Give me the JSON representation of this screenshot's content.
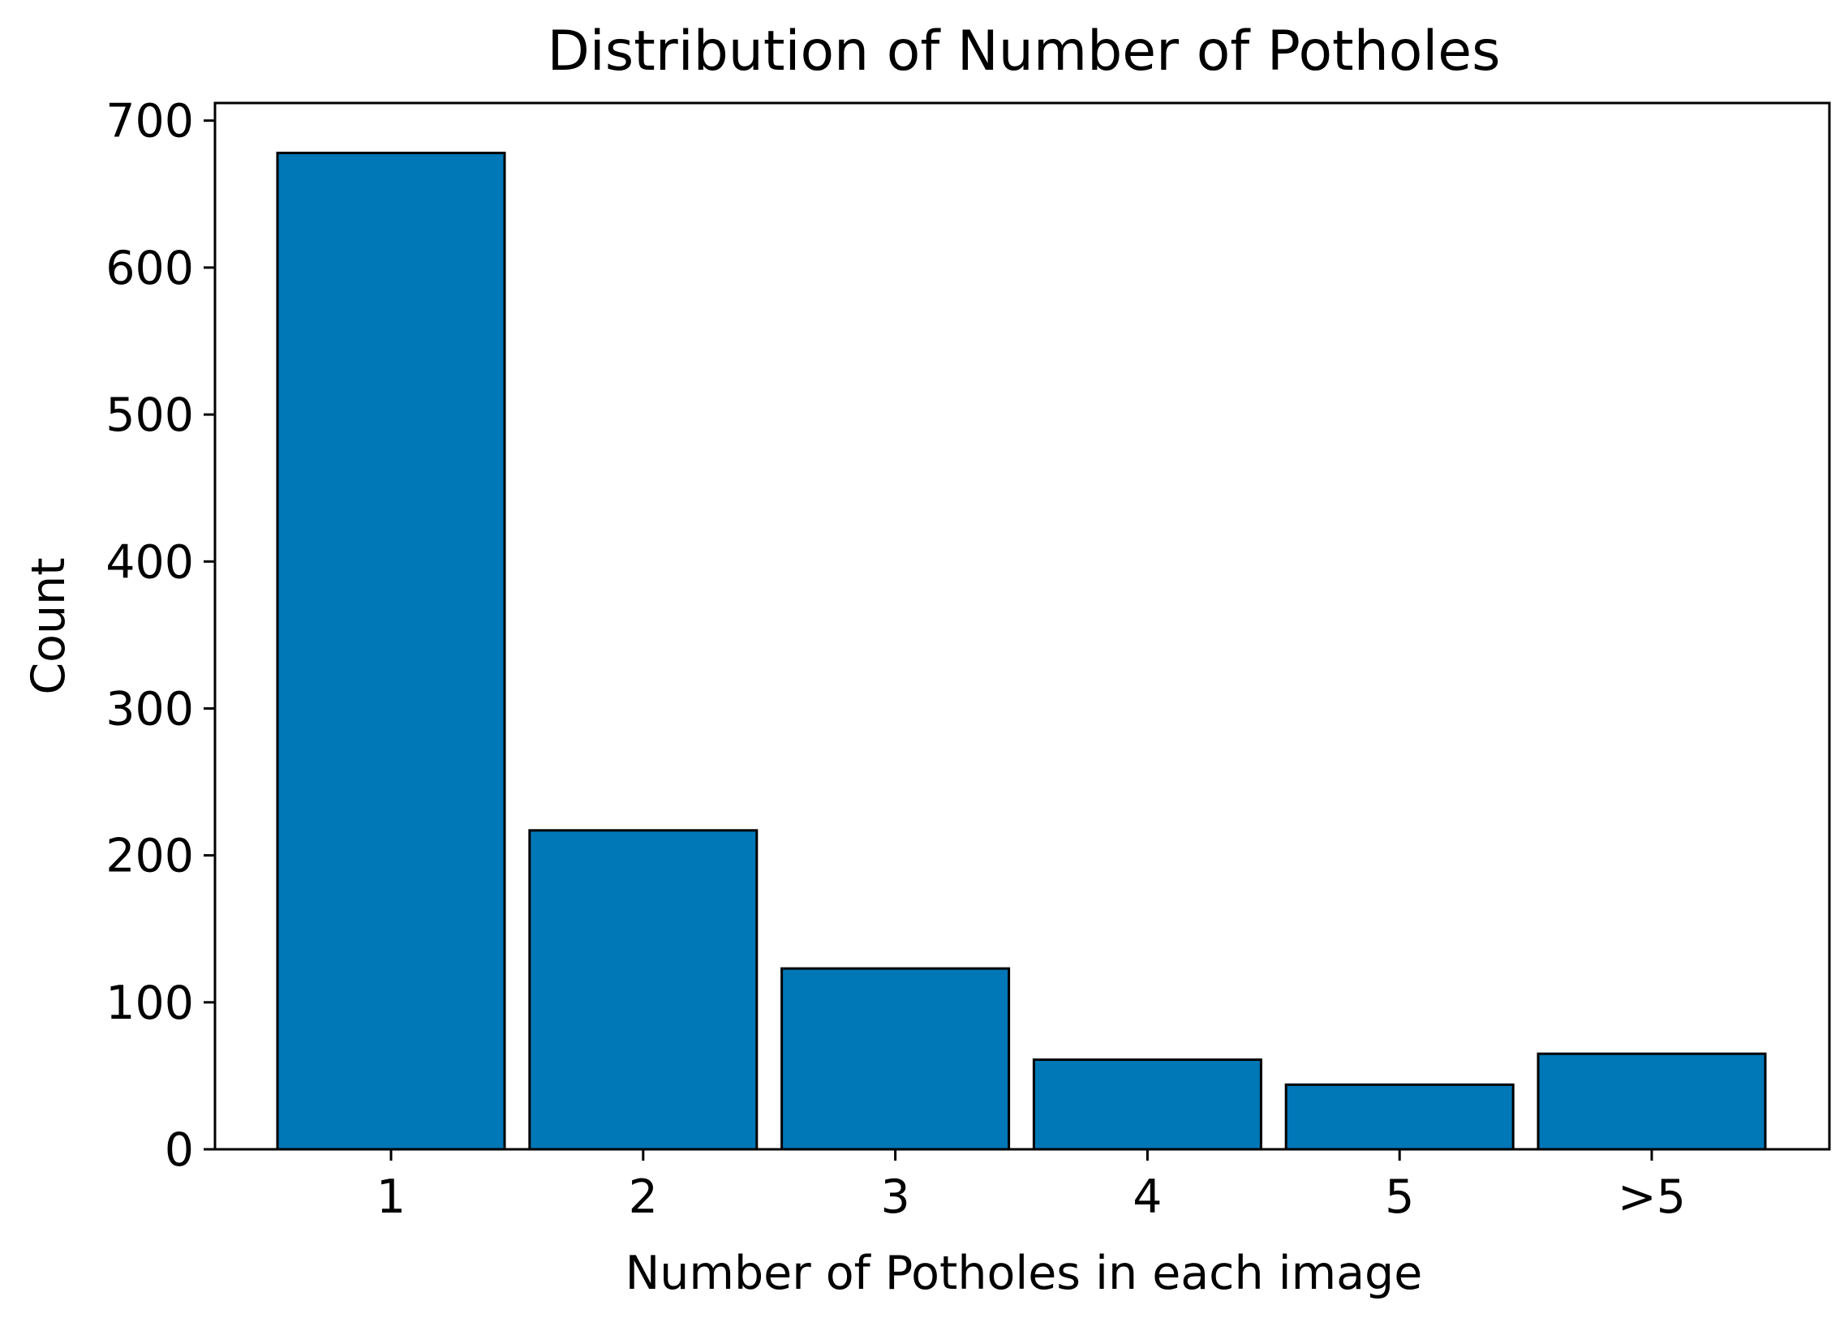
{
  "chart_data": {
    "type": "bar",
    "title": "Distribution of Number of Potholes",
    "xlabel": "Number of Potholes in each image",
    "ylabel": "Count",
    "categories": [
      "1",
      "2",
      "3",
      "4",
      "5",
      ">5"
    ],
    "values": [
      678,
      217,
      123,
      61,
      44,
      65
    ],
    "ylim": [
      0,
      712
    ],
    "yticks": [
      0,
      100,
      200,
      300,
      400,
      500,
      600,
      700
    ],
    "grid": false,
    "legend": "none",
    "bar_color": "#0077b6",
    "edge_color": "#000000"
  }
}
